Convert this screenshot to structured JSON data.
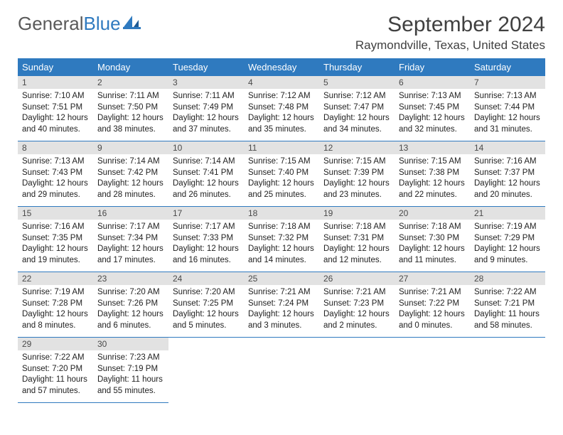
{
  "logo": {
    "text1": "General",
    "text2": "Blue"
  },
  "title": "September 2024",
  "subtitle": "Raymondville, Texas, United States",
  "colors": {
    "header_bg": "#2f7abf",
    "header_fg": "#ffffff",
    "daynum_bg": "#e2e2e2",
    "border": "#2f7abf",
    "logo_gray": "#5a5a5a",
    "logo_blue": "#2f7abf"
  },
  "weekdays": [
    "Sunday",
    "Monday",
    "Tuesday",
    "Wednesday",
    "Thursday",
    "Friday",
    "Saturday"
  ],
  "days": [
    {
      "n": "1",
      "sr": "7:10 AM",
      "ss": "7:51 PM",
      "d1": "12 hours",
      "d2": "and 40 minutes."
    },
    {
      "n": "2",
      "sr": "7:11 AM",
      "ss": "7:50 PM",
      "d1": "12 hours",
      "d2": "and 38 minutes."
    },
    {
      "n": "3",
      "sr": "7:11 AM",
      "ss": "7:49 PM",
      "d1": "12 hours",
      "d2": "and 37 minutes."
    },
    {
      "n": "4",
      "sr": "7:12 AM",
      "ss": "7:48 PM",
      "d1": "12 hours",
      "d2": "and 35 minutes."
    },
    {
      "n": "5",
      "sr": "7:12 AM",
      "ss": "7:47 PM",
      "d1": "12 hours",
      "d2": "and 34 minutes."
    },
    {
      "n": "6",
      "sr": "7:13 AM",
      "ss": "7:45 PM",
      "d1": "12 hours",
      "d2": "and 32 minutes."
    },
    {
      "n": "7",
      "sr": "7:13 AM",
      "ss": "7:44 PM",
      "d1": "12 hours",
      "d2": "and 31 minutes."
    },
    {
      "n": "8",
      "sr": "7:13 AM",
      "ss": "7:43 PM",
      "d1": "12 hours",
      "d2": "and 29 minutes."
    },
    {
      "n": "9",
      "sr": "7:14 AM",
      "ss": "7:42 PM",
      "d1": "12 hours",
      "d2": "and 28 minutes."
    },
    {
      "n": "10",
      "sr": "7:14 AM",
      "ss": "7:41 PM",
      "d1": "12 hours",
      "d2": "and 26 minutes."
    },
    {
      "n": "11",
      "sr": "7:15 AM",
      "ss": "7:40 PM",
      "d1": "12 hours",
      "d2": "and 25 minutes."
    },
    {
      "n": "12",
      "sr": "7:15 AM",
      "ss": "7:39 PM",
      "d1": "12 hours",
      "d2": "and 23 minutes."
    },
    {
      "n": "13",
      "sr": "7:15 AM",
      "ss": "7:38 PM",
      "d1": "12 hours",
      "d2": "and 22 minutes."
    },
    {
      "n": "14",
      "sr": "7:16 AM",
      "ss": "7:37 PM",
      "d1": "12 hours",
      "d2": "and 20 minutes."
    },
    {
      "n": "15",
      "sr": "7:16 AM",
      "ss": "7:35 PM",
      "d1": "12 hours",
      "d2": "and 19 minutes."
    },
    {
      "n": "16",
      "sr": "7:17 AM",
      "ss": "7:34 PM",
      "d1": "12 hours",
      "d2": "and 17 minutes."
    },
    {
      "n": "17",
      "sr": "7:17 AM",
      "ss": "7:33 PM",
      "d1": "12 hours",
      "d2": "and 16 minutes."
    },
    {
      "n": "18",
      "sr": "7:18 AM",
      "ss": "7:32 PM",
      "d1": "12 hours",
      "d2": "and 14 minutes."
    },
    {
      "n": "19",
      "sr": "7:18 AM",
      "ss": "7:31 PM",
      "d1": "12 hours",
      "d2": "and 12 minutes."
    },
    {
      "n": "20",
      "sr": "7:18 AM",
      "ss": "7:30 PM",
      "d1": "12 hours",
      "d2": "and 11 minutes."
    },
    {
      "n": "21",
      "sr": "7:19 AM",
      "ss": "7:29 PM",
      "d1": "12 hours",
      "d2": "and 9 minutes."
    },
    {
      "n": "22",
      "sr": "7:19 AM",
      "ss": "7:28 PM",
      "d1": "12 hours",
      "d2": "and 8 minutes."
    },
    {
      "n": "23",
      "sr": "7:20 AM",
      "ss": "7:26 PM",
      "d1": "12 hours",
      "d2": "and 6 minutes."
    },
    {
      "n": "24",
      "sr": "7:20 AM",
      "ss": "7:25 PM",
      "d1": "12 hours",
      "d2": "and 5 minutes."
    },
    {
      "n": "25",
      "sr": "7:21 AM",
      "ss": "7:24 PM",
      "d1": "12 hours",
      "d2": "and 3 minutes."
    },
    {
      "n": "26",
      "sr": "7:21 AM",
      "ss": "7:23 PM",
      "d1": "12 hours",
      "d2": "and 2 minutes."
    },
    {
      "n": "27",
      "sr": "7:21 AM",
      "ss": "7:22 PM",
      "d1": "12 hours",
      "d2": "and 0 minutes."
    },
    {
      "n": "28",
      "sr": "7:22 AM",
      "ss": "7:21 PM",
      "d1": "11 hours",
      "d2": "and 58 minutes."
    },
    {
      "n": "29",
      "sr": "7:22 AM",
      "ss": "7:20 PM",
      "d1": "11 hours",
      "d2": "and 57 minutes."
    },
    {
      "n": "30",
      "sr": "7:23 AM",
      "ss": "7:19 PM",
      "d1": "11 hours",
      "d2": "and 55 minutes."
    }
  ],
  "labels": {
    "sunrise": "Sunrise:",
    "sunset": "Sunset:",
    "daylight": "Daylight:"
  }
}
